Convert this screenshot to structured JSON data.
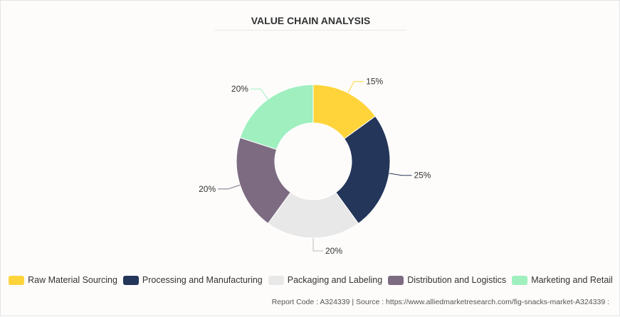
{
  "chart_data": {
    "type": "pie",
    "variant": "donut",
    "title": "VALUE CHAIN ANALYSIS",
    "categories": [
      "Raw Material Sourcing",
      "Processing and Manufacturing",
      "Packaging and Labeling",
      "Distribution and Logistics",
      "Marketing and Retail"
    ],
    "values": [
      15,
      25,
      20,
      20,
      20
    ],
    "labels": [
      "15%",
      "25%",
      "20%",
      "20%",
      "20%"
    ],
    "colors": [
      "#FFD43B",
      "#243659",
      "#E8E8E8",
      "#7D6B82",
      "#9FEFBF"
    ],
    "legend_position": "bottom"
  },
  "footer": "Report Code : A324339  |  Source : https://www.alliedmarketresearch.com/fig-snacks-market-A324339 :"
}
